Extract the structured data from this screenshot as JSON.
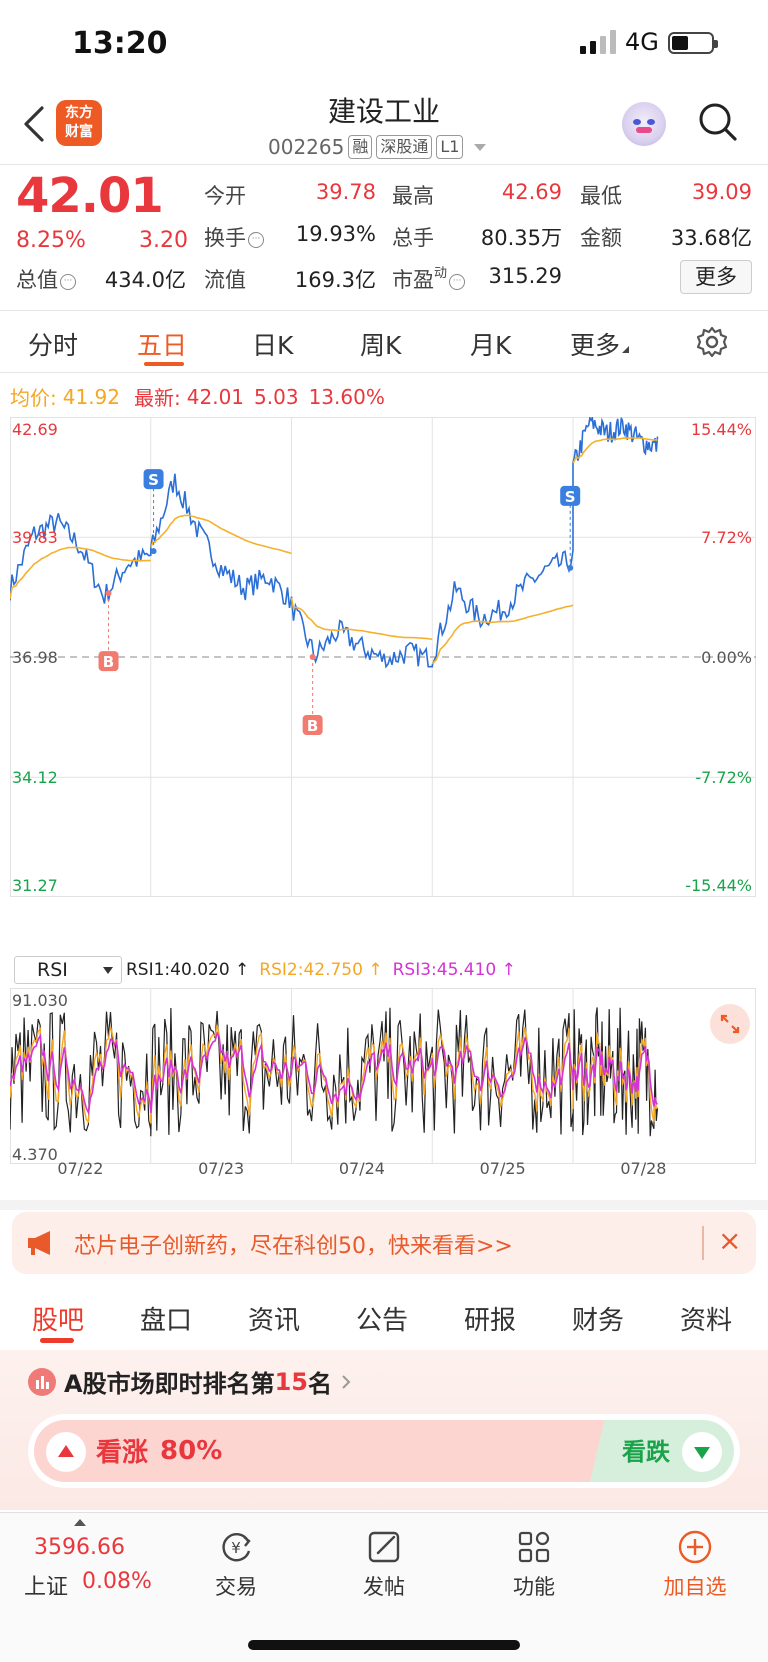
{
  "status_bar": {
    "time": "13:20",
    "network": "4G"
  },
  "header": {
    "logo_text": [
      "东方",
      "财富"
    ],
    "stock_name": "建设工业",
    "stock_code": "002265",
    "tags": [
      "融",
      "深股通",
      "L1"
    ]
  },
  "quote": {
    "price": "42.01",
    "change_pct": "8.25%",
    "change": "3.20",
    "rows": [
      [
        {
          "label": "今开",
          "value": "39.78",
          "color": "red"
        },
        {
          "label": "最高",
          "value": "42.69",
          "color": "red"
        },
        {
          "label": "最低",
          "value": "39.09",
          "color": "red"
        }
      ],
      [
        {
          "label": "换手",
          "value": "19.93%",
          "color": "black"
        },
        {
          "label": "总手",
          "value": "80.35万",
          "color": "black"
        },
        {
          "label": "金额",
          "value": "33.68亿",
          "color": "black"
        }
      ],
      [
        {
          "label": "总值",
          "value": "434.0亿",
          "color": "black"
        },
        {
          "label": "流值",
          "value": "169.3亿",
          "color": "black"
        },
        {
          "label": "市盈",
          "value": "315.29",
          "color": "black"
        }
      ]
    ],
    "pe_superscript": "动",
    "more_button": "更多"
  },
  "chart_tabs": {
    "items": [
      "分时",
      "五日",
      "日K",
      "周K",
      "月K",
      "更多"
    ],
    "active_index": 1
  },
  "chart_info": {
    "avg_label": "均价:",
    "avg_value": "41.92",
    "latest_label": "最新:",
    "latest_value": "42.01",
    "latest_change": "5.03",
    "latest_pct": "13.60%"
  },
  "chart_data": [
    {
      "type": "line",
      "series": [
        {
          "name": "",
          "color": "#2b6fd6"
        },
        {
          "name": "均价",
          "color": "#f5b02e"
        }
      ],
      "x_labels": [
        "07/22",
        "07/23",
        "07/24",
        "07/25",
        "07/28"
      ],
      "y_left_labels": [
        "42.69",
        "39.83",
        "36.98",
        "34.12",
        "31.27"
      ],
      "y_right_labels": [
        "15.44%",
        "7.72%",
        "0.00%",
        "-7.72%",
        "-15.44%"
      ],
      "ylim": [
        31.27,
        42.69
      ],
      "baseline": 36.98,
      "trade_marks": [
        {
          "label": "S",
          "day": 1,
          "pos": 0.02,
          "price": 39.5
        },
        {
          "label": "B",
          "day": 0,
          "pos": 0.7,
          "price": 38.5
        },
        {
          "label": "B",
          "day": 2,
          "pos": 0.15,
          "price": 36.98
        },
        {
          "label": "S",
          "day": 3,
          "pos": 0.98,
          "price": 39.1
        }
      ]
    },
    {
      "type": "line",
      "title": "RSI",
      "series": [
        {
          "name": "RSI1",
          "value": "40.020",
          "color": "#222222"
        },
        {
          "name": "RSI2",
          "value": "42.750",
          "color": "#f5a623"
        },
        {
          "name": "RSI3",
          "value": "45.410",
          "color": "#d633d6"
        }
      ],
      "ylim": [
        4.37,
        91.03
      ],
      "y_labels": [
        "91.030",
        "4.370"
      ]
    }
  ],
  "rsi": {
    "selector": "RSI",
    "labels": [
      "RSI1:40.020 ↑",
      "RSI2:42.750 ↑",
      "RSI3:45.410 ↑"
    ]
  },
  "ad": {
    "text": "芯片电子创新药，尽在科创50，快来看看>>",
    "close": "×"
  },
  "bottom_tabs": {
    "items": [
      "股吧",
      "盘口",
      "资讯",
      "公告",
      "研报",
      "财务",
      "资料"
    ],
    "active_index": 0
  },
  "ranking": {
    "text_prefix": "A股市场即时排名第",
    "rank": "15",
    "text_suffix": "名",
    "up_label": "看涨",
    "up_pct": "80%",
    "down_label": "看跌"
  },
  "nav": {
    "index_value": "3596.66",
    "index_name": "上证",
    "index_pct": "0.08%",
    "items": [
      {
        "label": "交易",
        "icon": "trade-icon"
      },
      {
        "label": "发帖",
        "icon": "post-icon"
      },
      {
        "label": "功能",
        "icon": "apps-icon"
      },
      {
        "label": "加自选",
        "icon": "add-watchlist-icon"
      }
    ]
  }
}
